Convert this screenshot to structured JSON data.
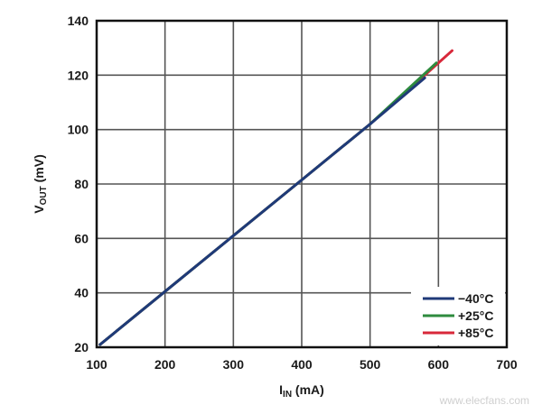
{
  "chart_data": {
    "type": "line",
    "title": "",
    "xlabel": "I_IN (mA)",
    "ylabel": "V_OUT (mV)",
    "xlim": [
      100,
      700
    ],
    "ylim": [
      20,
      140
    ],
    "x_ticks": [
      100,
      200,
      300,
      400,
      500,
      600,
      700
    ],
    "y_ticks": [
      20,
      40,
      60,
      80,
      100,
      120,
      140
    ],
    "grid": true,
    "legend_position": "lower right",
    "series": [
      {
        "name": "−40°C",
        "color": "#1f3a78",
        "x": [
          105,
          200,
          300,
          400,
          500,
          580
        ],
        "y": [
          21,
          40.5,
          61,
          81.5,
          102,
          119
        ]
      },
      {
        "name": "+25°C",
        "color": "#2e8b3e",
        "x": [
          105,
          200,
          300,
          400,
          500,
          597
        ],
        "y": [
          21,
          40.5,
          61,
          81.5,
          102,
          124.5
        ]
      },
      {
        "name": "+85°C",
        "color": "#d8283a",
        "x": [
          105,
          200,
          300,
          400,
          500,
          620
        ],
        "y": [
          21,
          40.5,
          61,
          81.5,
          102,
          129
        ]
      }
    ]
  },
  "axes": {
    "x_label_main": "I",
    "x_label_sub": "IN",
    "x_label_unit": " (mA)",
    "y_label_main": "V",
    "y_label_sub": "OUT",
    "y_label_unit": " (mV)"
  },
  "legend": {
    "items": [
      {
        "label": "−40°C",
        "color": "#1f3a78"
      },
      {
        "label": "+25°C",
        "color": "#2e8b3e"
      },
      {
        "label": "+85°C",
        "color": "#d8283a"
      }
    ]
  },
  "watermark": "www.elecfans.com"
}
